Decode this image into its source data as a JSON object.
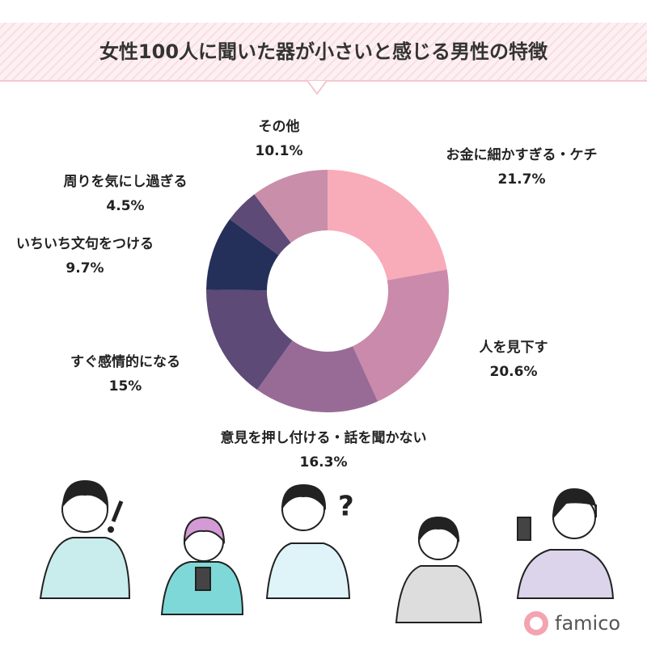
{
  "chart_data": {
    "type": "donut",
    "title": "女性100人に聞いた器が小さいと感じる男性の特徴",
    "categories": [
      "お金に細かすぎる・ケチ",
      "人を見下す",
      "意見を押し付ける・話を聞かない",
      "すぐ感情的になる",
      "いちいち文句をつける",
      "周りを気にし過ぎる",
      "その他"
    ],
    "values": [
      21.7,
      20.6,
      16.3,
      15,
      9.7,
      4.5,
      10.1
    ],
    "value_labels": [
      "21.7%",
      "20.6%",
      "16.3%",
      "15%",
      "9.7%",
      "4.5%",
      "10.1%"
    ],
    "colors": [
      "#f8abb9",
      "#c98aab",
      "#986b96",
      "#5d4a77",
      "#243059",
      "#5d4a77",
      "#c98eaa"
    ]
  },
  "brand": "famico"
}
